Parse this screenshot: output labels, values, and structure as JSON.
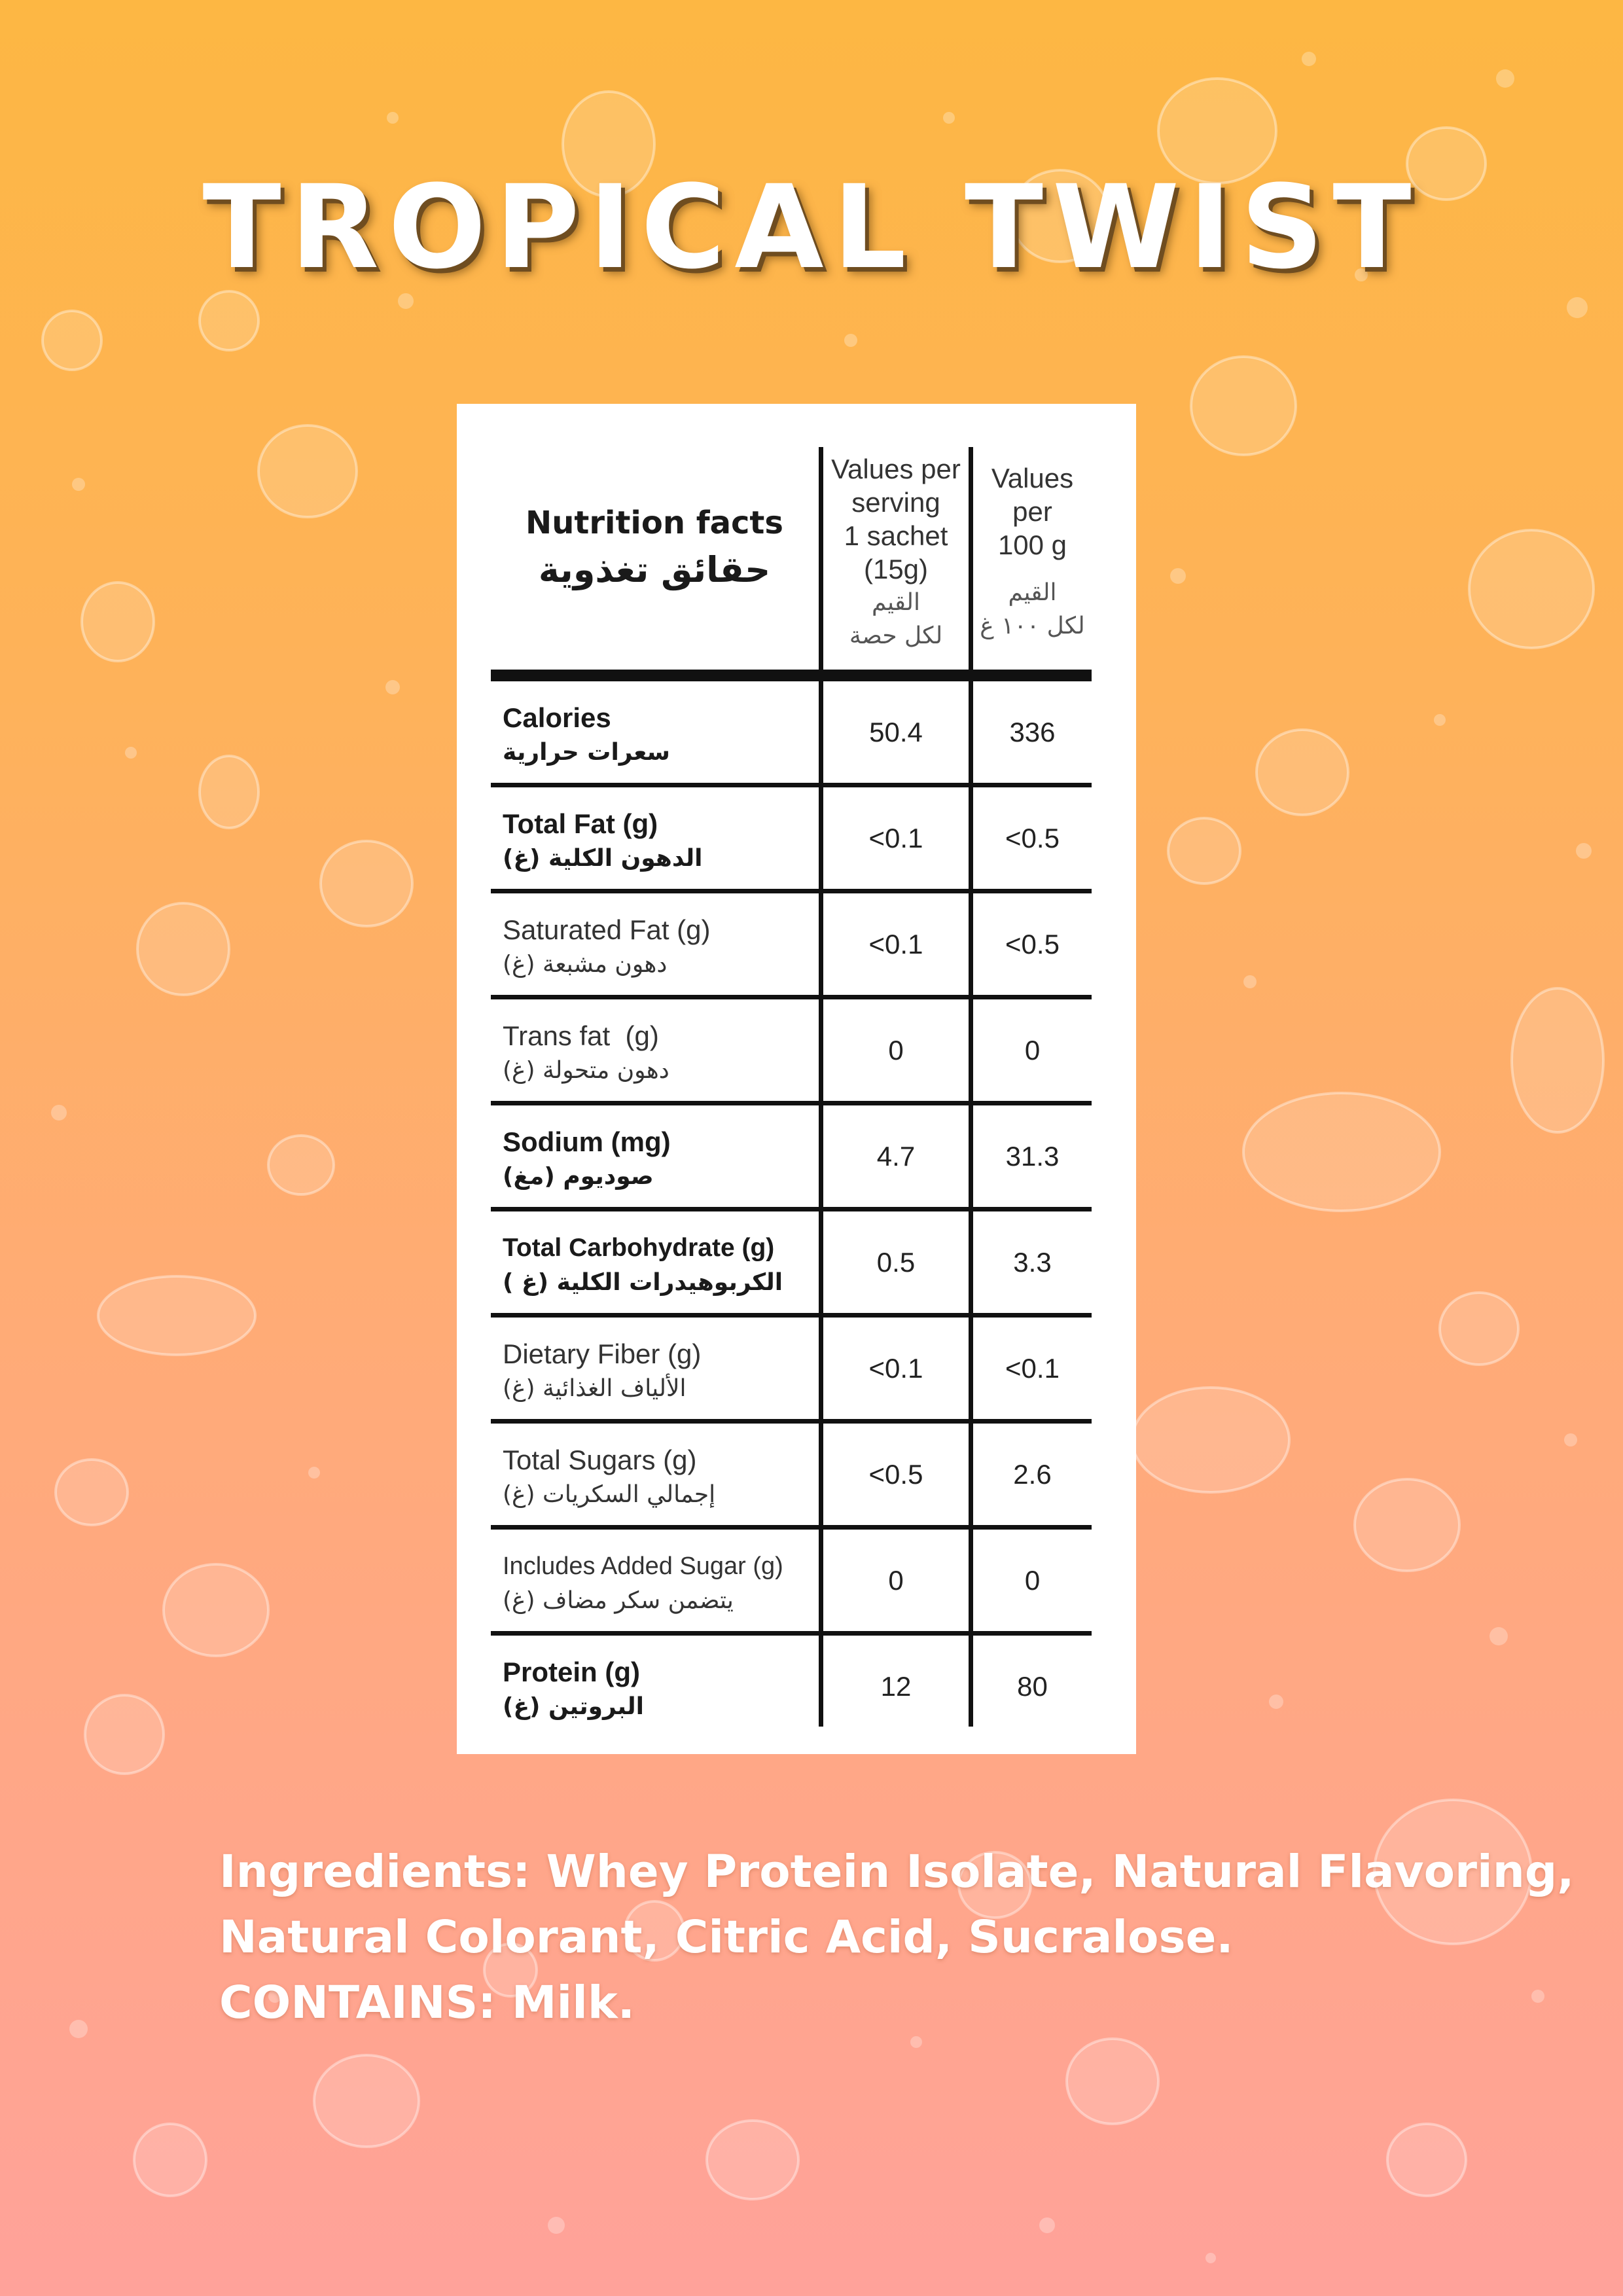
{
  "title": "TROPICAL TWIST",
  "nutrition": {
    "heading_en": "Nutrition facts",
    "heading_ar": "حقائق تغذوية",
    "col1_lines": [
      "Values per",
      "serving",
      "1 sachet",
      "(15g)"
    ],
    "col1_ar": [
      "القيم",
      "لكل حصة"
    ],
    "col2_lines": [
      "Values",
      "per",
      "100 g"
    ],
    "col2_ar": [
      "القيم",
      "لكل ١٠٠ غ"
    ],
    "rows": [
      {
        "en": "Calories",
        "ar": "سعرات حرارية",
        "per_serving": "50.4",
        "per_100g": "336"
      },
      {
        "en": "Total Fat (g)",
        "ar": "الدهون الكلية (غ)",
        "per_serving": "<0.1",
        "per_100g": "<0.5"
      },
      {
        "en": "Saturated Fat (g)",
        "ar": "دهون مشبعة (غ)",
        "per_serving": "<0.1",
        "per_100g": "<0.5"
      },
      {
        "en": "Trans fat  (g)",
        "ar": "دهون متحولة (غ)",
        "per_serving": "0",
        "per_100g": "0"
      },
      {
        "en": "Sodium (mg)",
        "ar": "صوديوم (مغ)",
        "per_serving": "4.7",
        "per_100g": "31.3"
      },
      {
        "en": "Total Carbohydrate (g)",
        "ar": "الكربوهيدرات الكلية (غ )",
        "per_serving": "0.5",
        "per_100g": "3.3"
      },
      {
        "en": "Dietary Fiber (g)",
        "ar": "الألياف الغذائية (غ)",
        "per_serving": "<0.1",
        "per_100g": "<0.1"
      },
      {
        "en": "Total Sugars (g)",
        "ar": "إجمالي السكريات (غ)",
        "per_serving": "<0.5",
        "per_100g": "2.6"
      },
      {
        "en": "Includes Added Sugar (g)",
        "ar": "يتضمن سكر مضاف (غ)",
        "per_serving": "0",
        "per_100g": "0"
      },
      {
        "en": "Protein (g)",
        "ar": "البروتين (غ)",
        "per_serving": "12",
        "per_100g": "80"
      }
    ]
  },
  "ingredients_lines": [
    "Ingredients: Whey Protein Isolate, Natural Flavoring,",
    "Natural Colorant, Citric Acid, Sucralose.",
    "CONTAINS: Milk."
  ]
}
